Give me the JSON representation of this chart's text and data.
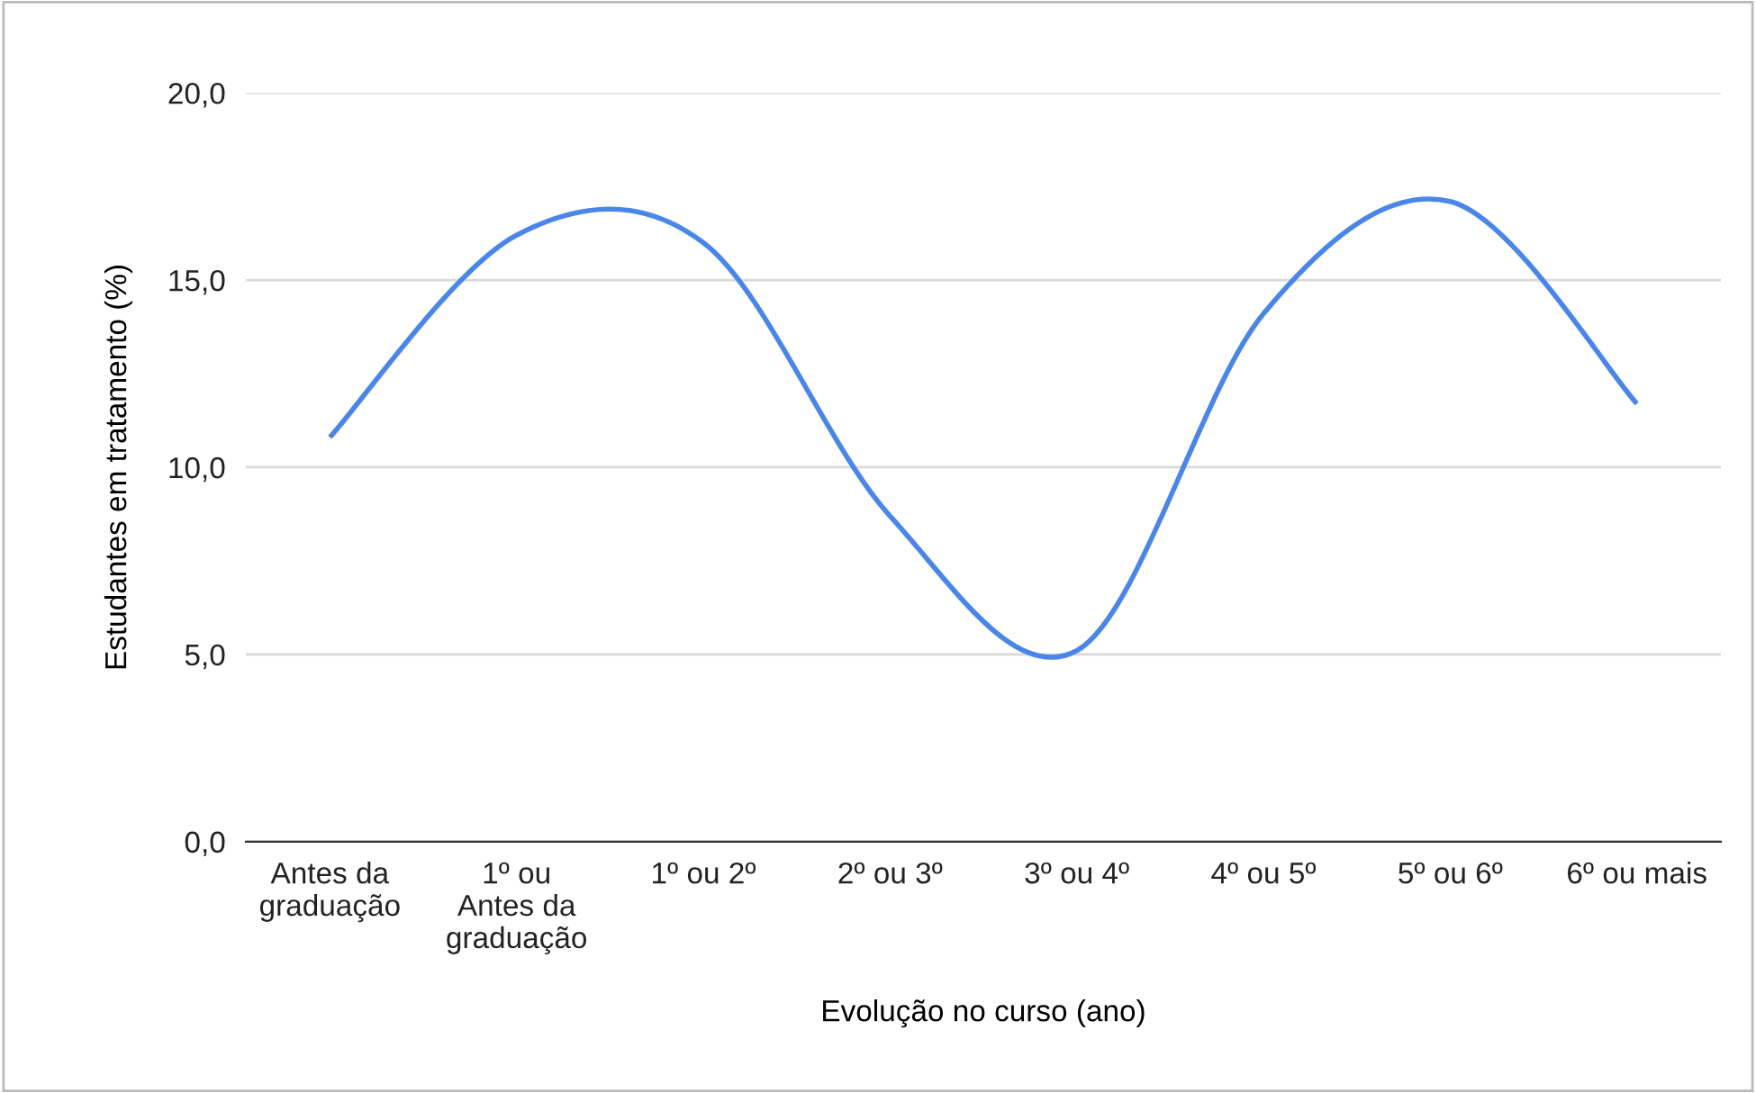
{
  "chart_data": {
    "type": "line",
    "xlabel": "Evolução no curso (ano)",
    "ylabel": "Estudantes em tratamento (%)",
    "categories": [
      "Antes da\ngraduação",
      "1º ou\nAntes da\ngraduação",
      "1º ou 2º",
      "2º ou 3º",
      "3º ou 4º",
      "4º ou 5º",
      "5º ou 6º",
      "6º ou mais"
    ],
    "series": [
      {
        "color": "#4a86e8",
        "values": [
          10.8,
          16.2,
          16.0,
          8.7,
          5.1,
          14.1,
          17.1,
          11.7
        ]
      }
    ],
    "ylim": [
      0,
      20
    ],
    "yticks": [
      {
        "value": 0,
        "label": "0,0"
      },
      {
        "value": 5,
        "label": "5,0"
      },
      {
        "value": 10,
        "label": "10,0"
      },
      {
        "value": 15,
        "label": "15,0"
      },
      {
        "value": 20,
        "label": "20,0"
      }
    ],
    "grid": "y",
    "marker": "none",
    "line_style": "solid"
  }
}
